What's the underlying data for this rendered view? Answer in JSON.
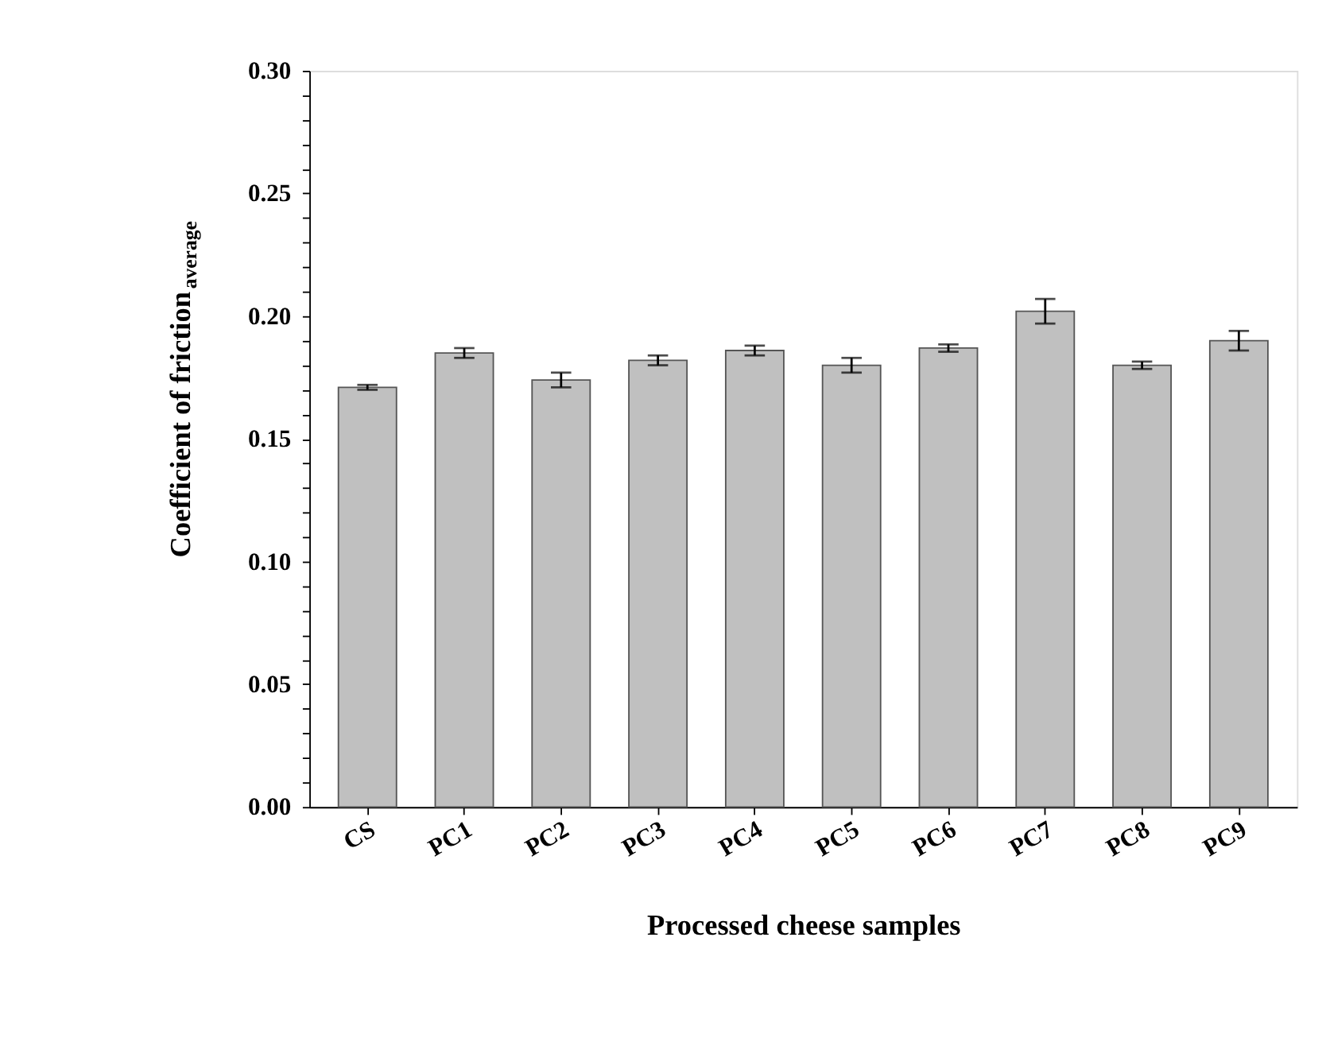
{
  "chart_data": {
    "type": "bar",
    "xlabel": "Processed cheese samples",
    "ylabel": "Coefficient of friction$_{average}$",
    "categories": [
      "CS",
      "PC1",
      "PC2",
      "PC3",
      "PC4",
      "PC5",
      "PC6",
      "PC7",
      "PC8",
      "PC9"
    ],
    "values": [
      0.171,
      0.185,
      0.174,
      0.182,
      0.186,
      0.18,
      0.187,
      0.202,
      0.18,
      0.19
    ],
    "errors": [
      0.001,
      0.002,
      0.003,
      0.002,
      0.002,
      0.003,
      0.0015,
      0.005,
      0.0015,
      0.004
    ],
    "color": "#c0c0c0",
    "ylim": [
      0,
      0.3
    ],
    "yticks": [
      {
        "value": 0,
        "label": "0.00"
      },
      {
        "value": 0.01,
        "label": null
      },
      {
        "value": 0.02,
        "label": null
      },
      {
        "value": 0.03,
        "label": null
      },
      {
        "value": 0.04,
        "label": null
      },
      0.05,
      {
        "value": 0.06,
        "label": null
      },
      {
        "value": 0.07,
        "label": null
      },
      {
        "value": 0.08,
        "label": null
      },
      {
        "value": 0.09,
        "label": null
      },
      {
        "value": 0.1,
        "label": "0.10"
      },
      {
        "value": 0.11,
        "label": null
      },
      {
        "value": 0.12,
        "label": null
      },
      {
        "value": 0.13,
        "label": null
      },
      {
        "value": 0.14,
        "label": null
      },
      0.15,
      {
        "value": 0.16,
        "label": null
      },
      {
        "value": 0.17,
        "label": null
      },
      {
        "value": 0.18,
        "label": null
      },
      {
        "value": 0.19,
        "label": null
      },
      {
        "value": 0.2,
        "label": "0.20"
      },
      {
        "value": 0.21,
        "label": null
      },
      {
        "value": 0.22,
        "label": null
      },
      {
        "value": 0.23,
        "label": null
      },
      {
        "value": 0.24,
        "label": null
      },
      0.25,
      {
        "value": 0.26,
        "label": null
      },
      {
        "value": 0.27,
        "label": null
      },
      {
        "value": 0.28,
        "label": null
      },
      {
        "value": 0.29,
        "label": null
      },
      {
        "value": 0.3,
        "label": "0.30"
      }
    ],
    "grid": false
  }
}
